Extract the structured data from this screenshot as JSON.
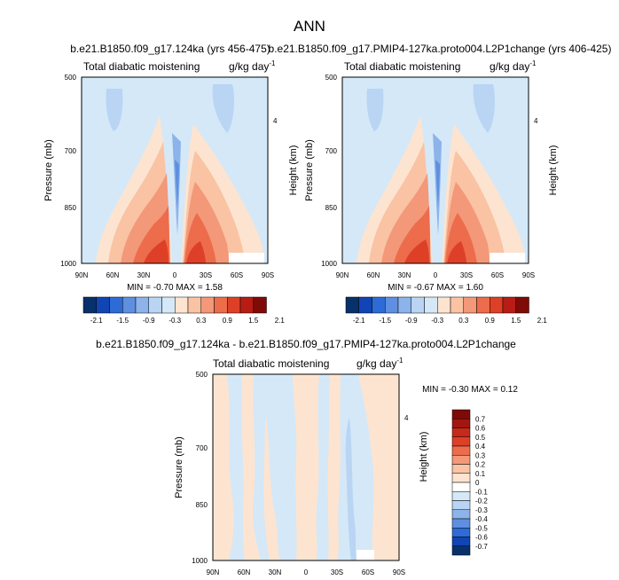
{
  "title": "ANN",
  "colors": {
    "neg_light": "#d4e8f8",
    "neg_mid": "#b9d5f3",
    "neg_dark": "#8cb3ea",
    "neg_deep": "#5f8fe0",
    "pos_light": "#fde4d0",
    "pos_mid": "#f9c3a4",
    "pos_dark": "#f39878",
    "pos_deep": "#ec6c4b",
    "pos_max": "#de4027",
    "white": "#ffffff"
  },
  "chart_data": [
    {
      "type": "heatmap",
      "title": "b.e21.B1850.f09_g17.124ka (yrs 456-475)",
      "left_label": "Total diabatic moistening",
      "right_label": "g/kg day",
      "right_label_sup": "-1",
      "ylabel": "Pressure (mb)",
      "ylabel_right": "Height (km)",
      "x_ticks": [
        "90N",
        "60N",
        "30N",
        "0",
        "30S",
        "60S",
        "90S"
      ],
      "y_ticks": [
        "500",
        "700",
        "850",
        "1000"
      ],
      "y_right_ticks": [
        "4"
      ],
      "stats": "MIN =  -0.70   MAX =   1.58",
      "colorbar_labels": [
        "-2.1",
        "-1.5",
        "-0.9",
        "-0.3",
        "0.3",
        "0.9",
        "1.5",
        "2.1"
      ]
    },
    {
      "type": "heatmap",
      "title": "b.e21.B1850.f09_g17.PMIP4-127ka.proto004.L2P1change (yrs 406-425)",
      "left_label": "Total diabatic moistening",
      "right_label": "g/kg day",
      "right_label_sup": "-1",
      "ylabel": "Pressure (mb)",
      "ylabel_right": "Height (km)",
      "x_ticks": [
        "90N",
        "60N",
        "30N",
        "0",
        "30S",
        "60S",
        "90S"
      ],
      "y_ticks": [
        "500",
        "700",
        "850",
        "1000"
      ],
      "y_right_ticks": [
        "4"
      ],
      "stats": "MIN =  -0.67   MAX =   1.60",
      "colorbar_labels": [
        "-2.1",
        "-1.5",
        "-0.9",
        "-0.3",
        "0.3",
        "0.9",
        "1.5",
        "2.1"
      ]
    },
    {
      "type": "heatmap",
      "title": "b.e21.B1850.f09_g17.124ka - b.e21.B1850.f09_g17.PMIP4-127ka.proto004.L2P1change",
      "left_label": "Total diabatic moistening",
      "right_label": "g/kg day",
      "right_label_sup": "-1",
      "ylabel": "Pressure (mb)",
      "ylabel_right": "Height (km)",
      "x_ticks": [
        "90N",
        "60N",
        "30N",
        "0",
        "30S",
        "60S",
        "90S"
      ],
      "y_ticks": [
        "500",
        "700",
        "850",
        "1000"
      ],
      "y_right_ticks": [
        "4"
      ],
      "stats": "MIN =  -0.30   MAX =   0.12",
      "colorbar_labels": [
        "0.7",
        "0.6",
        "0.5",
        "0.4",
        "0.3",
        "0.2",
        "0.1",
        "0",
        "-0.1",
        "-0.2",
        "-0.3",
        "-0.4",
        "-0.5",
        "-0.6",
        "-0.7"
      ]
    }
  ]
}
